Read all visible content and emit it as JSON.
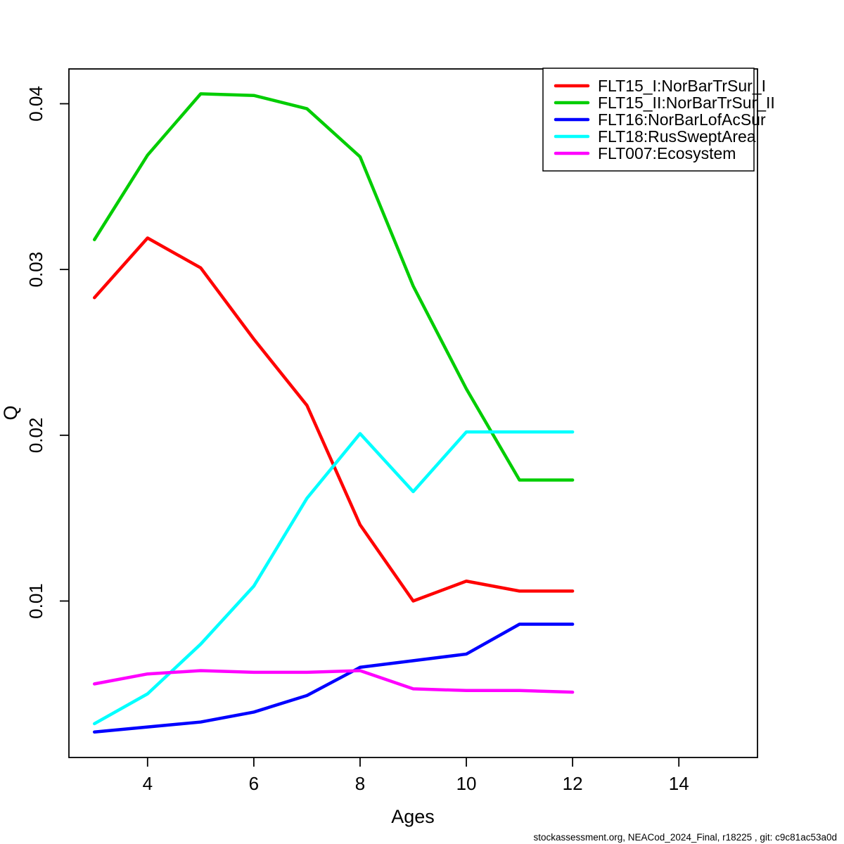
{
  "chart_data": {
    "type": "line",
    "title": "",
    "xlabel": "Ages",
    "ylabel": "Q",
    "x": [
      3,
      4,
      5,
      6,
      7,
      8,
      9,
      10,
      11,
      12
    ],
    "series": [
      {
        "name": "FLT15_I:NorBarTrSur_I",
        "color": "#FF0000",
        "values": [
          0.0283,
          0.0319,
          0.0301,
          0.0258,
          0.0218,
          0.0146,
          0.01,
          0.0112,
          0.0106,
          0.0106
        ]
      },
      {
        "name": "FLT15_II:NorBarTrSur_II",
        "color": "#00CD00",
        "values": [
          0.0318,
          0.0369,
          0.0406,
          0.0405,
          0.0397,
          0.0368,
          0.029,
          0.0228,
          0.0173,
          0.0173
        ]
      },
      {
        "name": "FLT16:NorBarLofAcSur",
        "color": "#0000FF",
        "values": [
          0.0021,
          0.0024,
          0.0027,
          0.0033,
          0.0043,
          0.006,
          0.0064,
          0.0068,
          0.0086,
          0.0086
        ]
      },
      {
        "name": "FLT18:RusSweptArea",
        "color": "#00FFFF",
        "values": [
          0.0026,
          0.0044,
          0.0074,
          0.0109,
          0.0162,
          0.0201,
          0.0166,
          0.0202,
          0.0202,
          0.0202
        ]
      },
      {
        "name": "FLT007:Ecosystem",
        "color": "#FF00FF",
        "values": [
          0.005,
          0.0056,
          0.0058,
          0.0057,
          0.0057,
          0.0058,
          0.0047,
          0.0046,
          0.0046,
          0.0045
        ]
      }
    ],
    "xlim": [
      2.52,
      15.48
    ],
    "ylim": [
      0.00056,
      0.0421
    ],
    "x_ticks": [
      4,
      6,
      8,
      10,
      12,
      14
    ],
    "x_tick_labels": [
      "4",
      "6",
      "8",
      "10",
      "12",
      "14"
    ],
    "y_ticks": [
      0.01,
      0.02,
      0.03,
      0.04
    ],
    "y_tick_labels": [
      "0.01",
      "0.02",
      "0.03",
      "0.04"
    ],
    "grid": false,
    "legend_position": "top-right",
    "axis_color": "#000000"
  },
  "footer": {
    "text": "stockassessment.org, NEACod_2024_Final, r18225 , git: c9c81ac53a0d"
  }
}
